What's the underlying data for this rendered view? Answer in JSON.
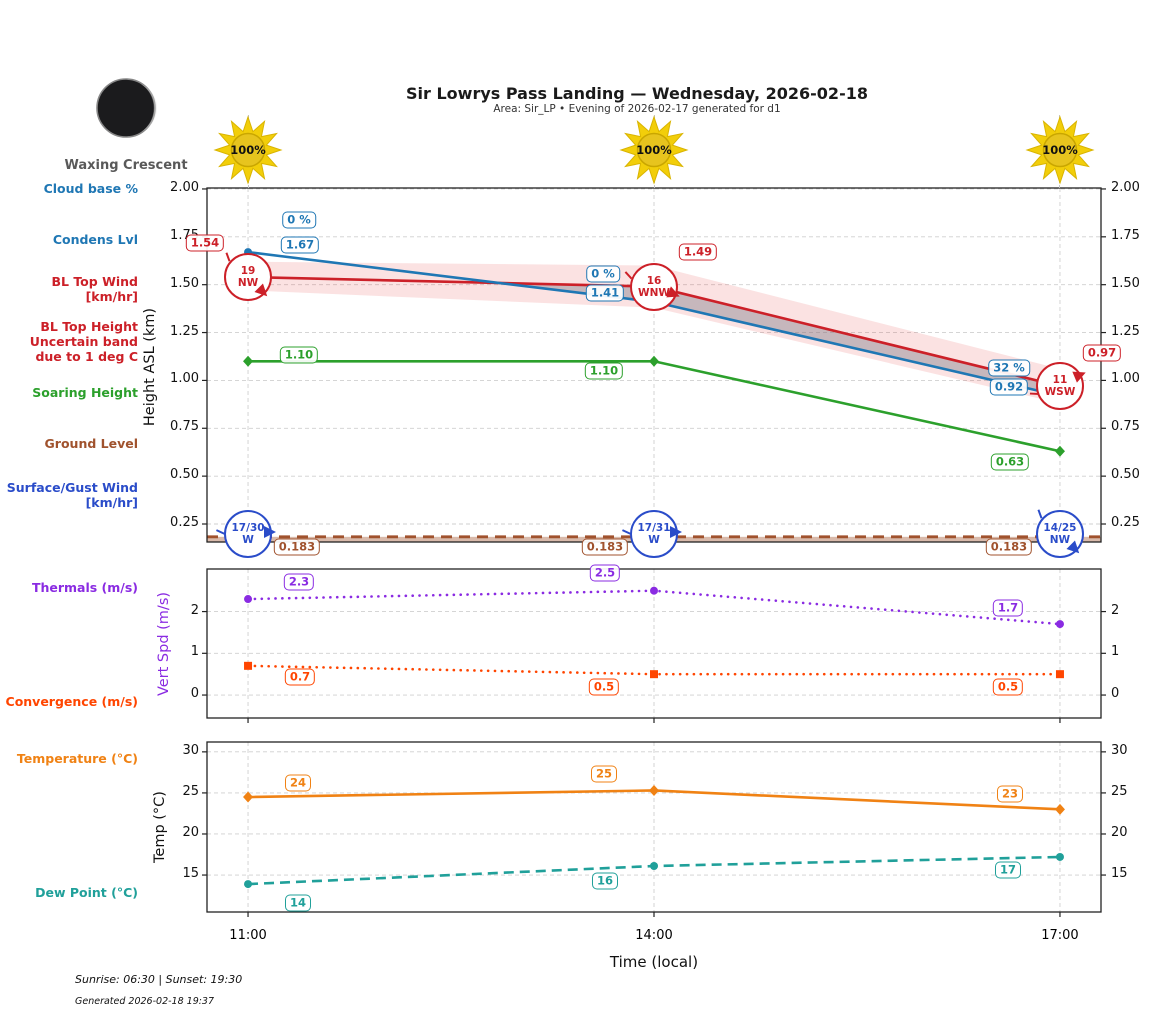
{
  "header": {
    "title": "Sir Lowrys Pass Landing — Wednesday, 2026-02-18",
    "subtitle": "Area: Sir_LP • Evening of 2026-02-17 generated for d1"
  },
  "moon": {
    "phase": "Waxing Crescent"
  },
  "axes": {
    "height_label": "Height ASL (km)",
    "vert_label": "Vert Spd (m/s)",
    "temp_label": "Temp (°C)",
    "time_label": "Time (local)"
  },
  "legend": {
    "cloud_base": {
      "lines": [
        "Cloud base %"
      ],
      "color": "#1f77b4"
    },
    "condens": {
      "lines": [
        "Condens Lvl"
      ],
      "color": "#1f77b4"
    },
    "bl_top_wind": {
      "lines": [
        "BL Top Wind",
        "[km/hr]"
      ],
      "color": "#cc2028"
    },
    "bl_band": {
      "lines": [
        "BL Top Height",
        "Uncertain band",
        "due to 1 deg C"
      ],
      "color": "#cc2028"
    },
    "soaring": {
      "lines": [
        "Soaring Height"
      ],
      "color": "#2ca02c"
    },
    "ground": {
      "lines": [
        "Ground Level"
      ],
      "color": "#a0522d"
    },
    "surface_wind": {
      "lines": [
        "Surface/Gust Wind",
        "[km/hr]"
      ],
      "color": "#2a4cc9"
    },
    "thermals": {
      "lines": [
        "Thermals (m/s)"
      ],
      "color": "#8a2be2"
    },
    "convergence": {
      "lines": [
        "Convergence (m/s)"
      ],
      "color": "#ff4500"
    },
    "temperature": {
      "lines": [
        "Temperature (°C)"
      ],
      "color": "#f08214"
    },
    "dew_point": {
      "lines": [
        "Dew Point (°C)"
      ],
      "color": "#20a09a"
    }
  },
  "footer": {
    "sun_times": "Sunrise: 06:30 | Sunset: 19:30",
    "generated": "Generated 2026-02-18 19:37"
  },
  "chart_data": [
    {
      "type": "line",
      "panel": "height-asl",
      "x": [
        "11:00",
        "14:00",
        "17:00"
      ],
      "xlabel": "Time (local)",
      "ylabel": "Height ASL (km)",
      "ylim": [
        0.156,
        2.005
      ],
      "yticks": [
        "0.25",
        "0.50",
        "0.75",
        "1.00",
        "1.25",
        "1.50",
        "1.75",
        "2.00"
      ],
      "grid": true,
      "sun_percent": [
        "100%",
        "100%",
        "100%"
      ],
      "cloud_base_pct": [
        "0 %",
        "0 %",
        "32 %"
      ],
      "series": [
        {
          "name": "Condens Lvl",
          "color": "#1f77b4",
          "line": "solid",
          "marker": "circle",
          "values": [
            1.67,
            1.41,
            0.92
          ],
          "labels": [
            "1.67",
            "1.41",
            "0.92"
          ]
        },
        {
          "name": "BL Top Height",
          "color": "#cc2028",
          "line": "solid",
          "marker": "none",
          "values": [
            1.54,
            1.49,
            0.97
          ],
          "labels": [
            "1.54",
            "1.49",
            "0.97"
          ]
        },
        {
          "name": "Soaring Height",
          "color": "#2ca02c",
          "line": "solid",
          "marker": "diamond",
          "values": [
            1.1,
            1.1,
            0.63
          ],
          "labels": [
            "1.10",
            "1.10",
            "0.63"
          ]
        },
        {
          "name": "Ground Level",
          "color": "#a0522d",
          "line": "dashed",
          "marker": "none",
          "fill_below": true,
          "values": [
            0.183,
            0.183,
            0.183
          ],
          "labels": [
            "0.183",
            "0.183",
            "0.183"
          ]
        }
      ],
      "band": {
        "name": "BL Top uncertainty (1 deg C)",
        "color": "#e03030",
        "opacity": 0.14,
        "upper": [
          1.62,
          1.6,
          1.06
        ],
        "lower": [
          1.47,
          1.38,
          0.88
        ]
      },
      "bl_top_wind": [
        {
          "speed": "19",
          "dir": "NW"
        },
        {
          "speed": "16",
          "dir": "WNW"
        },
        {
          "speed": "11",
          "dir": "WSW"
        }
      ],
      "surface_wind": [
        {
          "speed": "17/30",
          "dir": "W"
        },
        {
          "speed": "17/31",
          "dir": "W"
        },
        {
          "speed": "14/25",
          "dir": "NW"
        }
      ]
    },
    {
      "type": "line",
      "panel": "vert-speed",
      "x": [
        "11:00",
        "14:00",
        "17:00"
      ],
      "ylabel": "Vert Spd (m/s)",
      "ylim": [
        -0.55,
        3.02
      ],
      "yticks": [
        "0",
        "1",
        "2"
      ],
      "grid": true,
      "series": [
        {
          "name": "Thermals",
          "color": "#8a2be2",
          "line": "dotted",
          "marker": "circle",
          "values": [
            2.3,
            2.5,
            1.7
          ],
          "labels": [
            "2.3",
            "2.5",
            "1.7"
          ]
        },
        {
          "name": "Convergence",
          "color": "#ff4500",
          "line": "dotted",
          "marker": "square",
          "values": [
            0.7,
            0.5,
            0.5
          ],
          "labels": [
            "0.7",
            "0.5",
            "0.5"
          ]
        }
      ]
    },
    {
      "type": "line",
      "panel": "temperature",
      "x": [
        "11:00",
        "14:00",
        "17:00"
      ],
      "ylabel": "Temp (°C)",
      "ylim": [
        10.5,
        31.2
      ],
      "yticks": [
        "15",
        "20",
        "25",
        "30"
      ],
      "grid": true,
      "series": [
        {
          "name": "Temperature",
          "color": "#f08214",
          "line": "solid",
          "marker": "diamond",
          "values": [
            24.5,
            25.3,
            23.0
          ],
          "labels": [
            "24",
            "25",
            "23"
          ]
        },
        {
          "name": "Dew Point",
          "color": "#20a09a",
          "line": "dashed",
          "marker": "circle",
          "values": [
            13.9,
            16.1,
            17.2
          ],
          "labels": [
            "14",
            "16",
            "17"
          ]
        }
      ]
    }
  ]
}
